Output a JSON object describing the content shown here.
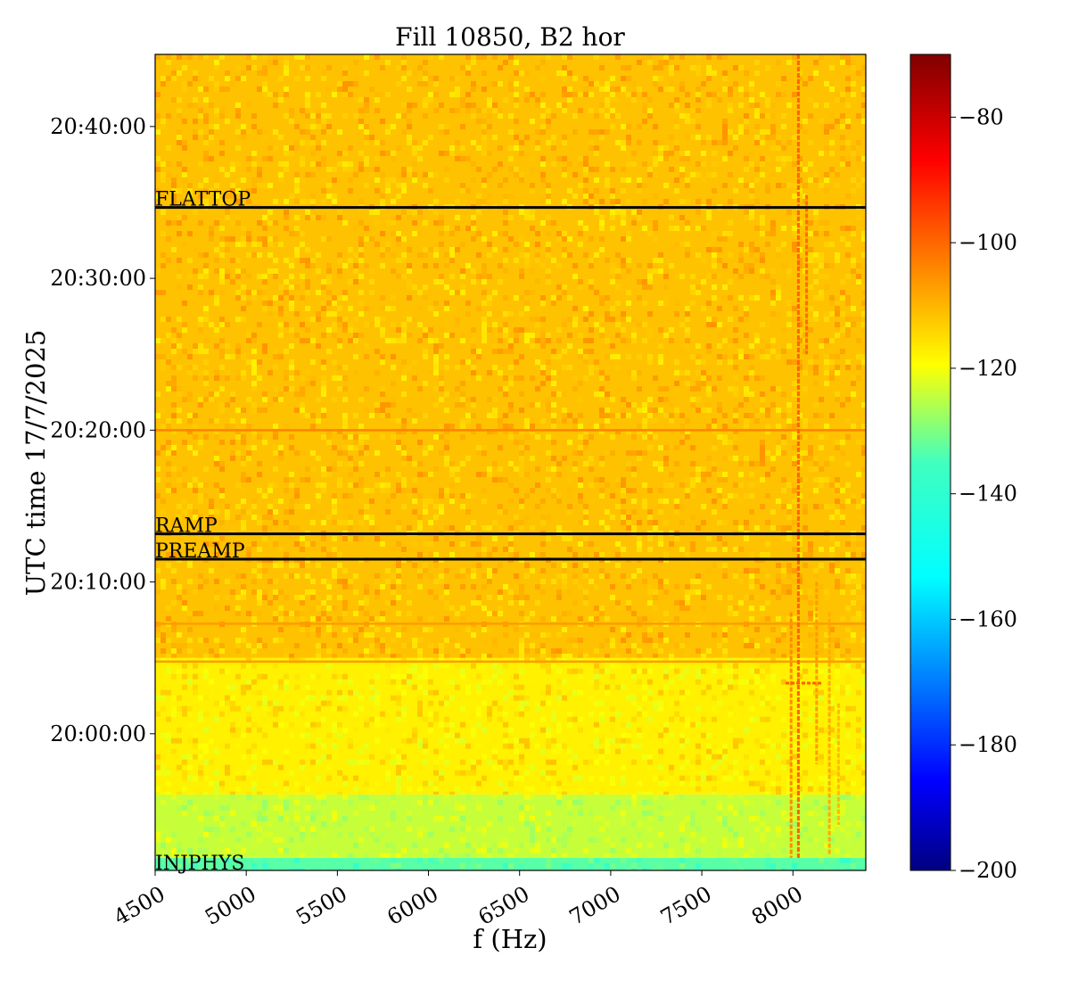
{
  "chart_data": {
    "type": "heatmap",
    "title": "Fill 10850, B2 hor",
    "xlabel": "f (Hz)",
    "ylabel": "UTC time 17/7/2025",
    "xlim": [
      4500,
      8400
    ],
    "ylim": [
      "19:51:00",
      "20:44:45"
    ],
    "x_ticks": [
      4500,
      5000,
      5500,
      6000,
      6500,
      7000,
      7500,
      8000
    ],
    "y_ticks": [
      "20:00:00",
      "20:10:00",
      "20:20:00",
      "20:30:00",
      "20:40:00"
    ],
    "colorbar": {
      "colormap": "jet",
      "range": [
        -200,
        -70
      ],
      "ticks": [
        -80,
        -100,
        -120,
        -140,
        -160,
        -180,
        -200
      ],
      "tick_labels": [
        "−80",
        "−100",
        "−120",
        "−140",
        "−160",
        "−180",
        "−200"
      ]
    },
    "phase_markers": [
      {
        "label": "FLATTOP",
        "time": "20:34:40"
      },
      {
        "label": "RAMP",
        "time": "20:13:10"
      },
      {
        "label": "PREAMP",
        "time": "20:11:30"
      },
      {
        "label": "INJPHYS",
        "time": "19:51:00"
      }
    ],
    "background_levels_db": [
      {
        "from": "19:51:00",
        "to": "19:51:50",
        "level": -140
      },
      {
        "from": "19:51:50",
        "to": "19:56:00",
        "level": -126
      },
      {
        "from": "19:56:00",
        "to": "20:05:00",
        "level": -117
      },
      {
        "from": "20:05:00",
        "to": "20:44:45",
        "level": -111
      }
    ],
    "horizontal_lines": [
      {
        "time": "20:20:00",
        "level": -103
      },
      {
        "time": "20:07:15",
        "level": -106
      },
      {
        "time": "20:04:45",
        "level": -106
      }
    ],
    "vertical_lines": [
      {
        "f": 7990,
        "from": "19:51:50",
        "to": "20:08:00",
        "level": -104
      },
      {
        "f": 8030,
        "from": "19:51:50",
        "to": "20:44:45",
        "level": -99
      },
      {
        "f": 8075,
        "from": "20:25:00",
        "to": "20:35:30",
        "level": -100
      },
      {
        "f": 8130,
        "from": "19:58:00",
        "to": "20:10:00",
        "level": -106
      },
      {
        "f": 8200,
        "from": "19:52:00",
        "to": "20:08:00",
        "level": -108
      },
      {
        "f": 8250,
        "from": "19:54:00",
        "to": "20:02:00",
        "level": -110
      }
    ],
    "spot_line": {
      "f_from": 7960,
      "f_to": 8160,
      "time": "20:03:20",
      "level": -98
    }
  }
}
